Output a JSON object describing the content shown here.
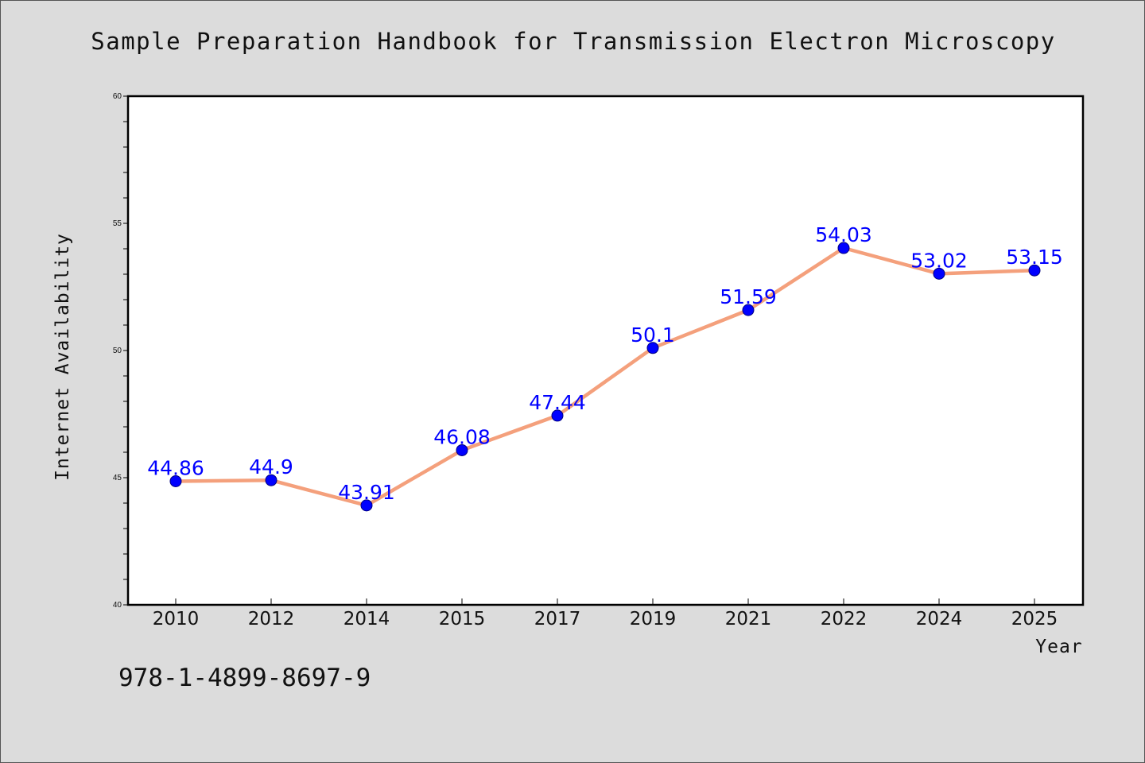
{
  "title": "Sample Preparation Handbook for Transmission Electron Microscopy",
  "isbn": "978-1-4899-8697-9",
  "colors": {
    "background": "#dcdcdc",
    "plot_background": "#ffffff",
    "line": "#f4a07c",
    "marker": "#0000ff",
    "data_label": "#0000ff"
  },
  "chart_data": {
    "type": "line",
    "title": "Sample Preparation Handbook for Transmission Electron Microscopy",
    "xlabel": "Year",
    "ylabel": "Internet Availability",
    "categories": [
      "2010",
      "2012",
      "2014",
      "2015",
      "2017",
      "2019",
      "2021",
      "2022",
      "2024",
      "2025"
    ],
    "series": [
      {
        "values": [
          44.86,
          44.9,
          43.91,
          46.08,
          47.44,
          50.1,
          51.59,
          54.03,
          53.02,
          53.15
        ],
        "labels": [
          "44.86",
          "44.9",
          "43.91",
          "46.08",
          "47.44",
          "50.1",
          "51.59",
          "54.03",
          "53.02",
          "53.15"
        ]
      }
    ],
    "ylim": [
      40,
      60
    ],
    "yticks": [
      "40",
      "45",
      "50",
      "55",
      "60"
    ],
    "grid": false,
    "legend": "none"
  }
}
